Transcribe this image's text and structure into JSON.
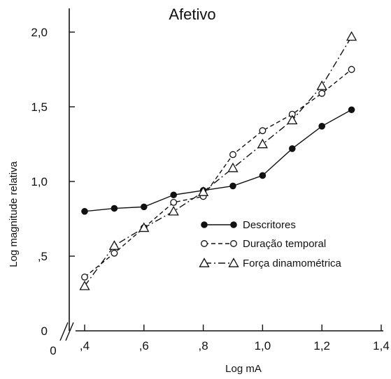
{
  "chart_data": {
    "type": "line",
    "title": "Afetivo",
    "xlabel": "Log mA",
    "ylabel": "Log magnitude relativa",
    "xlim": [
      0.4,
      1.4
    ],
    "ylim": [
      0,
      2.0
    ],
    "origin_label": "0",
    "x_ticks": [
      {
        "value": 0.4,
        "label": ",4"
      },
      {
        "value": 0.6,
        "label": ",6"
      },
      {
        "value": 0.8,
        "label": ",8"
      },
      {
        "value": 1.0,
        "label": "1,0"
      },
      {
        "value": 1.2,
        "label": "1,2"
      },
      {
        "value": 1.4,
        "label": "1,4"
      }
    ],
    "y_ticks": [
      {
        "value": 0,
        "label": "0"
      },
      {
        "value": 0.5,
        "label": ",5"
      },
      {
        "value": 1.0,
        "label": "1,0"
      },
      {
        "value": 1.5,
        "label": "1,5"
      },
      {
        "value": 2.0,
        "label": "2,0"
      }
    ],
    "legend_position": "center-right",
    "grid": false,
    "series": [
      {
        "name": "Descritores",
        "marker": "filled-circle",
        "line": "solid",
        "x": [
          0.4,
          0.5,
          0.6,
          0.7,
          0.8,
          0.9,
          1.0,
          1.1,
          1.2,
          1.3
        ],
        "y": [
          0.8,
          0.82,
          0.83,
          0.91,
          0.94,
          0.97,
          1.04,
          1.22,
          1.37,
          1.48
        ]
      },
      {
        "name": "Duração temporal",
        "marker": "open-circle",
        "line": "dashed",
        "x": [
          0.4,
          0.5,
          0.6,
          0.7,
          0.8,
          0.9,
          1.0,
          1.1,
          1.2,
          1.3
        ],
        "y": [
          0.36,
          0.52,
          0.69,
          0.86,
          0.9,
          1.18,
          1.34,
          1.45,
          1.59,
          1.75
        ]
      },
      {
        "name": "Força dinamométrica",
        "marker": "open-triangle",
        "line": "dash-dot",
        "x": [
          0.4,
          0.5,
          0.6,
          0.7,
          0.8,
          0.9,
          1.0,
          1.1,
          1.2,
          1.3
        ],
        "y": [
          0.3,
          0.57,
          0.69,
          0.8,
          0.93,
          1.09,
          1.25,
          1.41,
          1.64,
          1.97
        ]
      }
    ]
  }
}
